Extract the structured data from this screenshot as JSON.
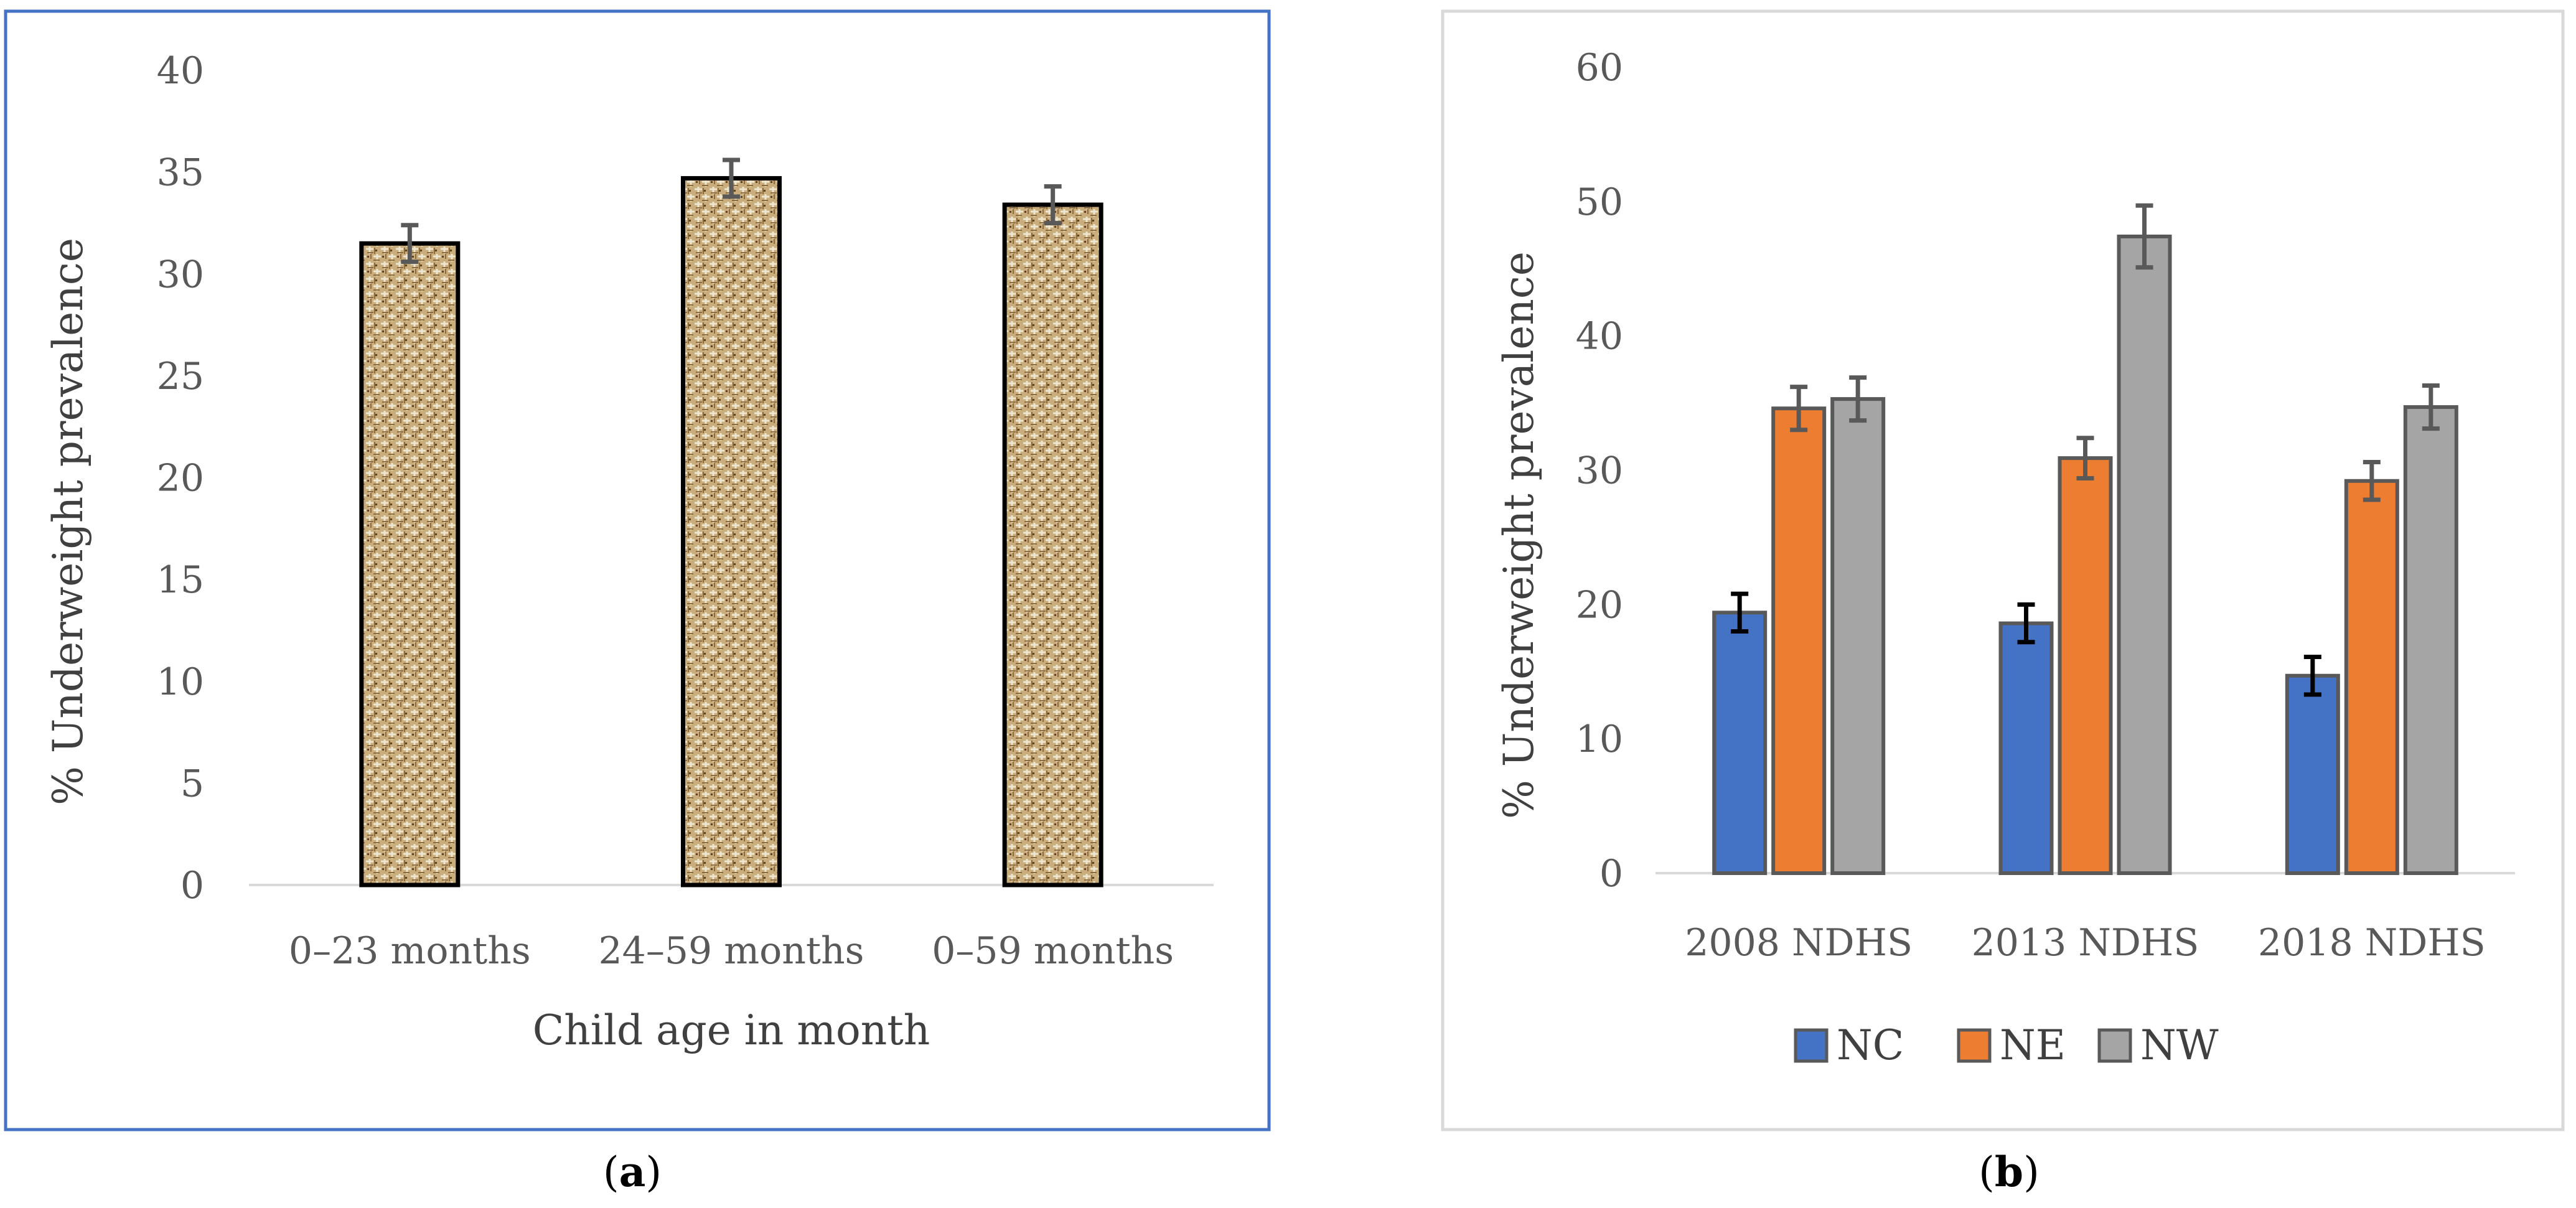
{
  "figure": {
    "panel_a_label": "a",
    "panel_b_label": "b"
  },
  "colors": {
    "frame_a": "#4472c4",
    "frame_b": "#d9d9d9",
    "NC": "#4472c4",
    "NE": "#ed7d31",
    "NW": "#a5a5a5",
    "texture_bg": "#c9ad7c",
    "texture_line": "#ede3cc",
    "texture_dark": "#7a5a30",
    "errorbar": "#595959",
    "errorbar_nc": "#000000"
  },
  "chart_data": [
    {
      "type": "bar",
      "panel": "a",
      "categories": [
        "0–23 months",
        "24–59 months",
        "0–59 months"
      ],
      "values": [
        31.5,
        34.7,
        33.4
      ],
      "errors": [
        0.9,
        0.9,
        0.9
      ],
      "xlabel": "Child age in month",
      "ylabel": "% Underweight prevalence",
      "ylim": [
        0,
        40
      ],
      "yticks": [
        0,
        5,
        10,
        15,
        20,
        25,
        30,
        35,
        40
      ],
      "grid": false,
      "legend": "none"
    },
    {
      "type": "bar",
      "panel": "b",
      "categories": [
        "2008 NDHS",
        "2013 NDHS",
        "2018 NDHS"
      ],
      "series": [
        {
          "name": "NC",
          "values": [
            19.4,
            18.6,
            14.7
          ],
          "errors": [
            1.4,
            1.4,
            1.4
          ]
        },
        {
          "name": "NE",
          "values": [
            34.6,
            30.9,
            29.2
          ],
          "errors": [
            1.6,
            1.5,
            1.4
          ]
        },
        {
          "name": "NW",
          "values": [
            35.3,
            47.4,
            34.7
          ],
          "errors": [
            1.6,
            2.3,
            1.6
          ]
        }
      ],
      "xlabel": "",
      "ylabel": "% Underweight prevalence",
      "ylim": [
        0,
        60
      ],
      "yticks": [
        0,
        10,
        20,
        30,
        40,
        50,
        60
      ],
      "grid": false,
      "legend": "bottom"
    }
  ]
}
